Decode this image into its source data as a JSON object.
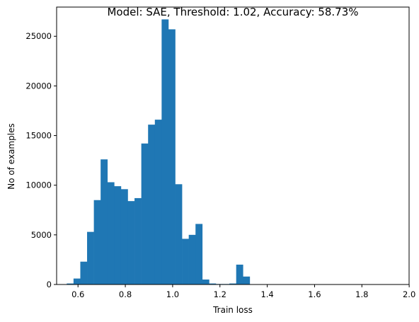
{
  "chart_data": {
    "type": "bar",
    "title": "Model: SAE, Threshold: 1.02, Accuracy: 58.73%",
    "xlabel": "Train loss",
    "ylabel": "No of examples",
    "xlim": [
      0.5096,
      1.9996
    ],
    "ylim": [
      0,
      27940
    ],
    "bin_start": 0.5524,
    "bin_width": 0.02865,
    "values": [
      100,
      600,
      2300,
      5300,
      8500,
      12600,
      10300,
      9900,
      9600,
      8400,
      8700,
      14200,
      16100,
      16600,
      26700,
      25700,
      10100,
      4600,
      5000,
      6100,
      500,
      100,
      50,
      50,
      100,
      2000,
      800,
      0,
      0,
      0,
      0,
      0,
      0,
      0,
      0,
      0,
      0,
      0,
      0,
      0,
      0,
      0,
      0,
      0,
      0,
      0,
      0,
      0,
      0,
      0
    ],
    "xticks": [
      "0.6",
      "0.8",
      "1.0",
      "1.2",
      "1.4",
      "1.6",
      "1.8",
      "2.0"
    ],
    "yticks": [
      "0",
      "5000",
      "10000",
      "15000",
      "20000",
      "25000"
    ],
    "bar_color": "#1f77b4",
    "grid": false,
    "legend": "none"
  }
}
